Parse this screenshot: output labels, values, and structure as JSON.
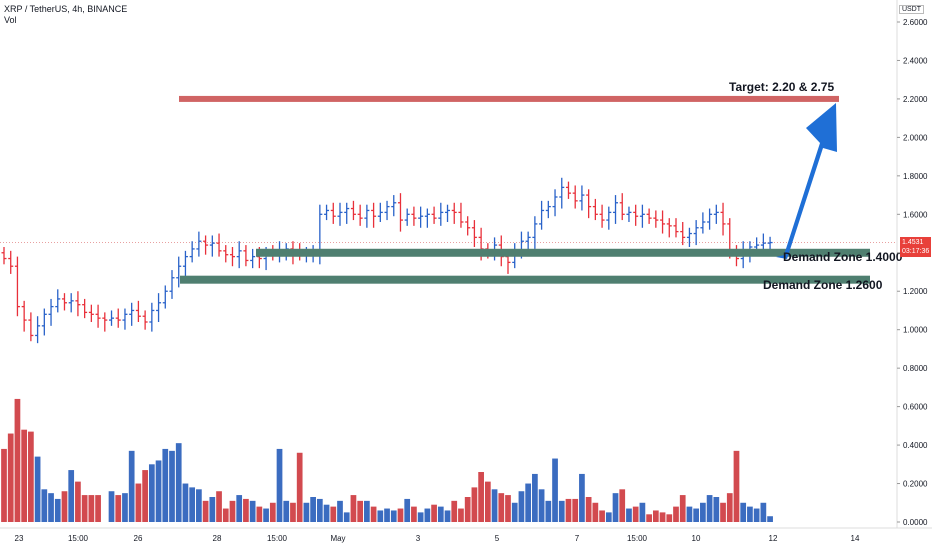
{
  "header": {
    "symbol_line": "XRP / TetherUS, 4h, BINANCE",
    "indicator": "Vol"
  },
  "axis": {
    "currency": "USDT",
    "price_labels": [
      "2.6000",
      "2.4000",
      "2.2000",
      "2.0000",
      "1.8000",
      "1.6000",
      "1.4000",
      "1.2000",
      "1.0000",
      "0.8000",
      "0.6000",
      "0.4000",
      "0.2000",
      "0.0000"
    ],
    "date_labels": [
      "23",
      "15:00",
      "26",
      "28",
      "15:00",
      "May",
      "3",
      "5",
      "7",
      "15:00",
      "10",
      "12",
      "14"
    ],
    "last_price": "1.4531",
    "countdown": "03:17:36"
  },
  "annotations": {
    "target": "Target: 2.20 & 2.75",
    "demand1": "Demand Zone 1.4000",
    "demand2": "Demand Zone 1.2600"
  },
  "colors": {
    "up": "#2962c9",
    "down": "#e8303a",
    "vol_up": "#3b6cc0",
    "vol_down": "#d24a4f",
    "target_line": "#d06464",
    "zone": "#4f7f70",
    "arrow": "#1f6fd6"
  },
  "chart_data": {
    "type": "ohlc-bar",
    "price_range": [
      0.0,
      2.7
    ],
    "levels": {
      "target": 2.2,
      "demand_1": 1.4,
      "demand_2": 1.26,
      "last": 1.4531
    },
    "close": [
      1.37,
      1.33,
      1.12,
      1.05,
      0.97,
      1.02,
      1.08,
      1.12,
      1.16,
      1.14,
      1.15,
      1.13,
      1.09,
      1.08,
      1.06,
      1.05,
      1.06,
      1.05,
      1.08,
      1.1,
      1.07,
      1.04,
      1.1,
      1.14,
      1.2,
      1.27,
      1.33,
      1.38,
      1.42,
      1.46,
      1.44,
      1.45,
      1.41,
      1.39,
      1.38,
      1.41,
      1.36,
      1.38,
      1.37,
      1.4,
      1.39,
      1.41,
      1.42,
      1.4,
      1.39,
      1.4,
      1.4,
      1.6,
      1.62,
      1.59,
      1.61,
      1.63,
      1.6,
      1.58,
      1.62,
      1.59,
      1.61,
      1.64,
      1.66,
      1.57,
      1.6,
      1.58,
      1.59,
      1.6,
      1.58,
      1.61,
      1.62,
      1.61,
      1.56,
      1.53,
      1.48,
      1.42,
      1.4,
      1.44,
      1.38,
      1.35,
      1.41,
      1.46,
      1.48,
      1.55,
      1.62,
      1.64,
      1.69,
      1.74,
      1.71,
      1.67,
      1.7,
      1.64,
      1.6,
      1.57,
      1.61,
      1.66,
      1.6,
      1.61,
      1.59,
      1.6,
      1.58,
      1.57,
      1.55,
      1.54,
      1.51,
      1.48,
      1.5,
      1.53,
      1.56,
      1.6,
      1.61,
      1.55,
      1.4,
      1.37,
      1.41,
      1.43,
      1.44,
      1.45,
      1.4531
    ],
    "volume": [
      0.38,
      0.46,
      0.64,
      0.48,
      0.47,
      0.34,
      0.17,
      0.15,
      0.12,
      0.16,
      0.27,
      0.21,
      0.14,
      0.14,
      0.14,
      0.0,
      0.16,
      0.14,
      0.15,
      0.37,
      0.2,
      0.27,
      0.3,
      0.32,
      0.38,
      0.37,
      0.41,
      0.2,
      0.18,
      0.17,
      0.11,
      0.13,
      0.16,
      0.07,
      0.11,
      0.14,
      0.12,
      0.11,
      0.08,
      0.07,
      0.1,
      0.38,
      0.11,
      0.1,
      0.36,
      0.1,
      0.13,
      0.12,
      0.09,
      0.08,
      0.11,
      0.05,
      0.14,
      0.11,
      0.11,
      0.08,
      0.06,
      0.07,
      0.06,
      0.07,
      0.12,
      0.08,
      0.05,
      0.07,
      0.09,
      0.08,
      0.06,
      0.11,
      0.07,
      0.13,
      0.18,
      0.26,
      0.21,
      0.17,
      0.15,
      0.14,
      0.1,
      0.16,
      0.2,
      0.25,
      0.17,
      0.11,
      0.33,
      0.11,
      0.12,
      0.12,
      0.25,
      0.13,
      0.1,
      0.06,
      0.05,
      0.15,
      0.17,
      0.07,
      0.08,
      0.1,
      0.04,
      0.06,
      0.05,
      0.04,
      0.08,
      0.14,
      0.08,
      0.07,
      0.1,
      0.14,
      0.13,
      0.1,
      0.15,
      0.37,
      0.1,
      0.08,
      0.07,
      0.1,
      0.03
    ]
  }
}
